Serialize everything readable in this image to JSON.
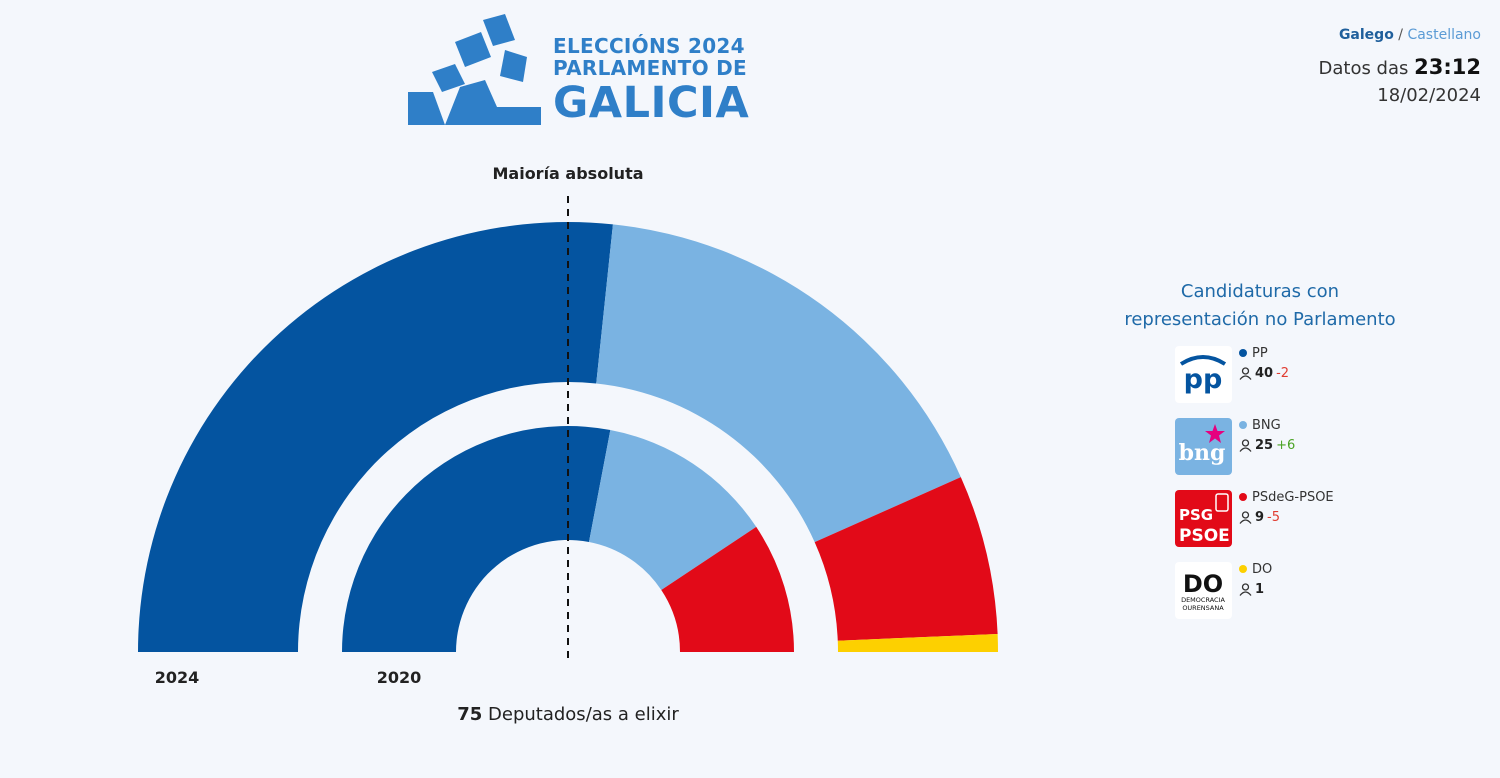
{
  "header": {
    "logo": {
      "line1": "ELECCIÓNS 2024",
      "line2": "PARLAMENTO DE",
      "line3": "GALICIA",
      "icon": "ballot-box-icon"
    },
    "language": {
      "active": "Galego",
      "separator": "/",
      "other": "Castellano"
    },
    "datetime": {
      "prefix": "Datos das",
      "time": "23:12",
      "date": "18/02/2024"
    }
  },
  "chart_data": {
    "type": "hemicycle",
    "total_seats": 75,
    "total_label_number": "75",
    "total_label_text": "Deputados/as a elixir",
    "majority_label": "Maioría absoluta",
    "majority_seats": 38,
    "ring_labels": {
      "outer": "2024",
      "inner": "2020"
    },
    "parties": [
      "PP",
      "BNG",
      "PSdeG-PSOE",
      "DO"
    ],
    "colors": {
      "PP": "#0454a0",
      "BNG": "#7ab3e2",
      "PSdeG-PSOE": "#e20a18",
      "DO": "#fdd000"
    },
    "series": [
      {
        "name": "2024",
        "values": [
          40,
          25,
          9,
          1
        ]
      },
      {
        "name": "2020",
        "values": [
          42,
          19,
          14,
          0
        ]
      }
    ]
  },
  "legend": {
    "title_line1": "Candidaturas con",
    "title_line2": "representación no Parlamento",
    "items": [
      {
        "name": "PP",
        "seats": "40",
        "change": "-2",
        "change_sign": "neg",
        "color": "#0454a0",
        "logo": "pp-logo"
      },
      {
        "name": "BNG",
        "seats": "25",
        "change": "+6",
        "change_sign": "pos",
        "color": "#7ab3e2",
        "logo": "bng-logo"
      },
      {
        "name": "PSdeG-PSOE",
        "seats": "9",
        "change": "-5",
        "change_sign": "neg",
        "color": "#e20a18",
        "logo": "psdeg-psoe-logo",
        "logo_line1": "PSG",
        "logo_line2": "PSOE"
      },
      {
        "name": "DO",
        "seats": "1",
        "change": "",
        "change_sign": "",
        "color": "#fdd000",
        "logo": "do-logo",
        "logo_line1": "DO",
        "logo_line2": "DEMOCRACIA",
        "logo_line3": "OURENSANA"
      }
    ]
  }
}
